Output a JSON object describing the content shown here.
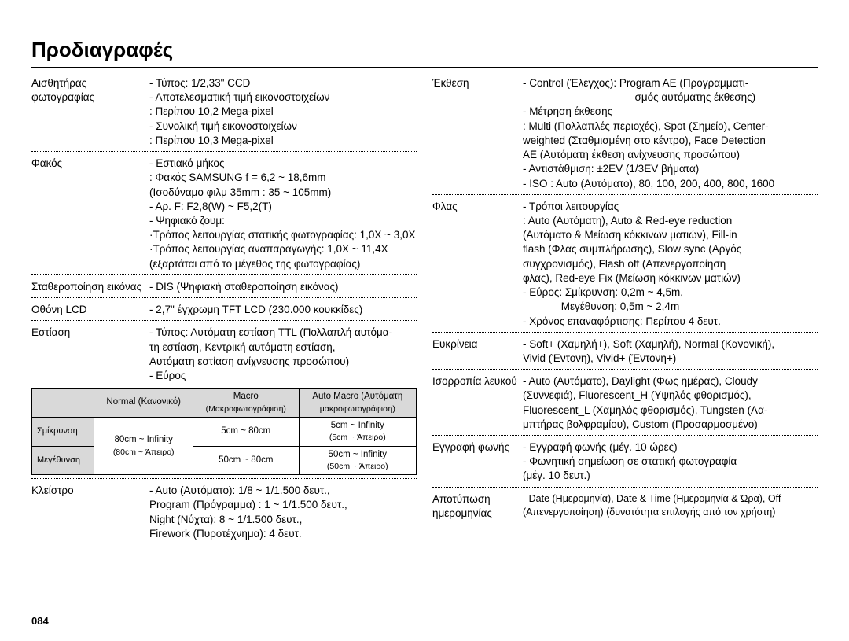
{
  "title": "Προδιαγραφές",
  "page_number": "084",
  "left": {
    "sensor": {
      "label": "Αισθητήρας φωτογραφίας",
      "lines": [
        "- Τύπος: 1/2,33\" CCD",
        "- Αποτελεσματική τιμή εικονοστοιχείων",
        "  : Περίπου 10,2 Mega-pixel",
        "- Συνολική τιμή εικονοστοιχείων",
        "  : Περίπου 10,3 Mega-pixel"
      ]
    },
    "lens": {
      "label": "Φακός",
      "lines": [
        "- Εστιακό μήκος",
        "  : Φακός SAMSUNG f = 6,2 ~ 18,6mm",
        "  (Ισοδύναμο φιλμ 35mm : 35 ~ 105mm)",
        "- Αρ. F: F2,8(W) ~ F5,2(T)",
        "- Ψηφιακό ζουμ:",
        "  ·Τρόπος λειτουργίας στατικής φωτογραφίας: 1,0X ~ 3,0X",
        "  ·Τρόπος λειτουργίας αναπαραγωγής: 1,0X ~ 11,4X",
        "  (εξαρτάται από το μέγεθος της φωτογραφίας)"
      ]
    },
    "stabilization": {
      "label": "Σταθεροποίηση εικόνας",
      "lines": [
        "- DIS (Ψηφιακή σταθεροποίηση εικόνας)"
      ]
    },
    "lcd": {
      "label": "Οθόνη LCD",
      "lines": [
        "- 2,7\" έγχρωμη TFT LCD (230.000 κουκκίδες)"
      ]
    },
    "focus": {
      "label": "Εστίαση",
      "lines": [
        "- Τύπος: Αυτόματη εστίαση TTL (Πολλαπλή αυτόμα-",
        "  τη εστίαση, Κεντρική αυτόματη εστίαση,",
        "  Αυτόματη εστίαση ανίχνευσης προσώπου)",
        "- Εύρος"
      ]
    },
    "focus_table": {
      "columns": [
        "",
        "Normal (Κανονικό)",
        "Macro",
        "Auto Macro (Αυτόματη"
      ],
      "col_sub": [
        "",
        "",
        "(Μακροφωτογράφιση)",
        "μακροφωτογράφιση)"
      ],
      "rows": [
        {
          "hdr": "Σμίκρυνση",
          "cells": [
            "80cm ~ Infinity",
            "5cm ~ 80cm",
            "5cm ~ Infinity"
          ],
          "cells_sub": [
            "(80cm ~ Άπειρο)",
            "",
            "(5cm ~ Άπειρο)"
          ],
          "rowspan_note": true
        },
        {
          "hdr": "Μεγέθυνση",
          "cells": [
            "",
            "50cm ~ 80cm",
            "50cm ~ Infinity"
          ],
          "cells_sub": [
            "",
            "",
            "(50cm ~ Άπειρο)"
          ]
        }
      ]
    },
    "shutter": {
      "label": "Κλείστρο",
      "lines": [
        "- Auto (Αυτόματο): 1/8 ~ 1/1.500 δευτ.,",
        "  Program (Πρόγραμμα) : 1 ~ 1/1.500 δευτ.,",
        "  Night (Νύχτα): 8 ~ 1/1.500 δευτ.,",
        "  Firework (Πυροτέχνημα): 4 δευτ."
      ]
    }
  },
  "right": {
    "exposure": {
      "label": "Έκθεση",
      "lines": [
        "- Control (Έλεγχος): Program AE (Προγραμματι-",
        "                                      σμός αυτόματης έκθεσης)",
        "- Μέτρηση έκθεσης",
        "  : Multi (Πολλαπλές περιοχές), Spot (Σημείο), Center-",
        "  weighted (Σταθμισμένη στο κέντρο), Face Detection",
        "  AE (Αυτόματη έκθεση ανίχνευσης προσώπου)",
        "- Αντιστάθμιση: ±2EV (1/3EV βήματα)",
        "- ISO :  Auto (Αυτόματο), 80, 100, 200, 400, 800, 1600"
      ]
    },
    "flash": {
      "label": "Φλας",
      "lines": [
        "- Τρόποι λειτουργίας",
        "  : Auto (Αυτόματη), Auto & Red-eye reduction",
        "  (Αυτόματο & Μείωση κόκκινων ματιών), Fill-in",
        "  flash (Φλας συμπλήρωσης), Slow sync (Αργός",
        "  συγχρονισμός), Flash off (Απενεργοποίηση",
        "  φλας), Red-eye Fix (Μείωση κόκκινων ματιών)",
        "- Εύρος: Σμίκρυνση: 0,2m ~ 4,5m,",
        "             Μεγέθυνση: 0,5m ~ 2,4m",
        "- Χρόνος επαναφόρτισης: Περίπου 4 δευτ."
      ]
    },
    "sharpness": {
      "label": "Ευκρίνεια",
      "lines": [
        "- Soft+ (Χαμηλή+), Soft (Χαμηλή), Normal (Κανονική),",
        "  Vivid (Έντονη), Vivid+ (Έντονη+)"
      ]
    },
    "wb": {
      "label": "Ισορροπία λευκού",
      "lines": [
        "- Auto (Αυτόματο), Daylight (Φως ημέρας), Cloudy",
        "  (Συννεφιά), Fluorescent_H (Υψηλός φθορισμός),",
        "  Fluorescent_L (Χαμηλός φθορισμός), Tungsten (Λα-",
        "  μπτήρας βολφραμίου), Custom (Προσαρμοσμένο)"
      ]
    },
    "voice": {
      "label": "Εγγραφή φωνής",
      "lines": [
        "- Εγγραφή φωνής (μέγ. 10 ώρες)",
        "- Φωνητική σημείωση σε στατική φωτογραφία",
        "  (μέγ. 10 δευτ.)"
      ]
    },
    "date": {
      "label": "Αποτύπωση ημερομηνίας",
      "lines": [
        "- Date (Ημερομηνία), Date & Time (Ημερομηνία & Ώρα), Off",
        "  (Απενεργοποίηση) (δυνατότητα επιλογής από τον χρήστη)"
      ]
    }
  }
}
